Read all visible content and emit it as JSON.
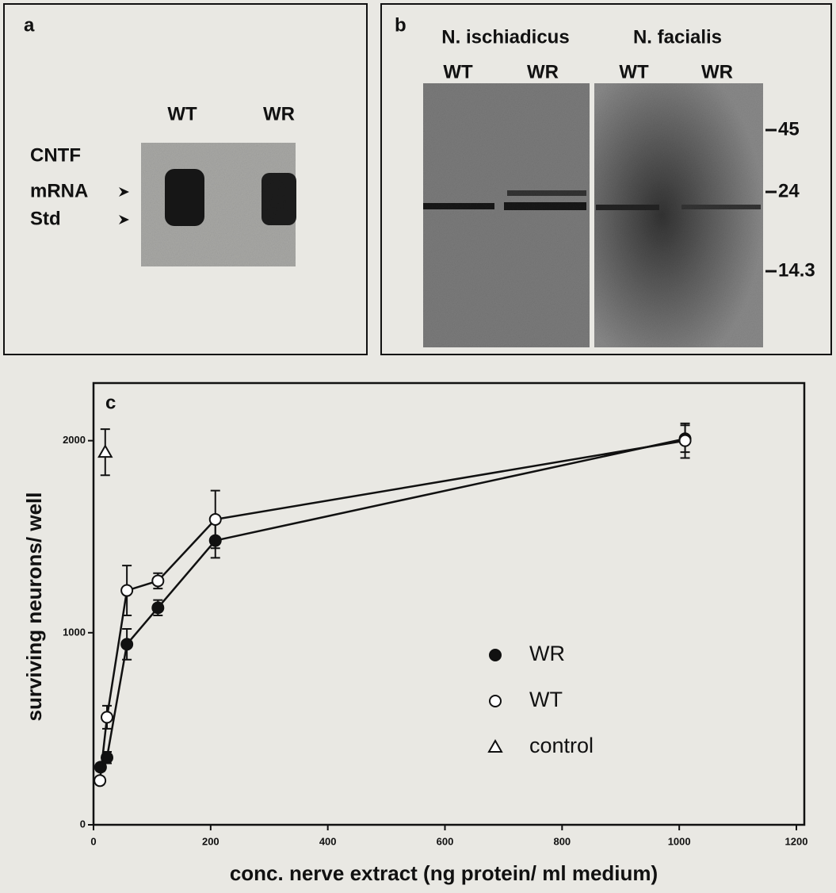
{
  "panel_a": {
    "label": "a",
    "lanes": [
      "WT",
      "WR"
    ],
    "row_labels": [
      "CNTF",
      "mRNA",
      "Std"
    ]
  },
  "panel_b": {
    "label": "b",
    "groups": [
      "N. ischiadicus",
      "N. facialis"
    ],
    "lanes": [
      "WT",
      "WR",
      "WT",
      "WR"
    ],
    "markers": [
      "45",
      "24",
      "14.3"
    ]
  },
  "chart_data": {
    "type": "line",
    "panel_label": "c",
    "x_label": "conc. nerve extract (ng protein/ ml medium)",
    "y_label": "surviving neurons/ well",
    "xlim": [
      0,
      1200
    ],
    "xticks": [
      0,
      200,
      400,
      600,
      800,
      1000,
      1200
    ],
    "ylim": [
      0,
      2300
    ],
    "yticks": [
      0,
      1000,
      2000
    ],
    "series": [
      {
        "name": "WR",
        "color": "#111111",
        "marker": "filled-circle",
        "line": true,
        "x": [
          12,
          23,
          57,
          110,
          208,
          1010
        ],
        "values": [
          300,
          350,
          940,
          1130,
          1480,
          2010
        ],
        "errors": [
          20,
          30,
          80,
          40,
          90,
          70
        ]
      },
      {
        "name": "WT",
        "color": "#111111",
        "marker": "open-circle",
        "line": true,
        "x": [
          11,
          23,
          57,
          110,
          208,
          1010
        ],
        "values": [
          230,
          560,
          1220,
          1270,
          1590,
          2000
        ],
        "errors": [
          20,
          60,
          130,
          40,
          150,
          90
        ]
      },
      {
        "name": "control",
        "color": "#111111",
        "marker": "open-triangle",
        "line": false,
        "x": [
          20
        ],
        "values": [
          1940
        ],
        "errors": [
          120
        ]
      }
    ]
  }
}
